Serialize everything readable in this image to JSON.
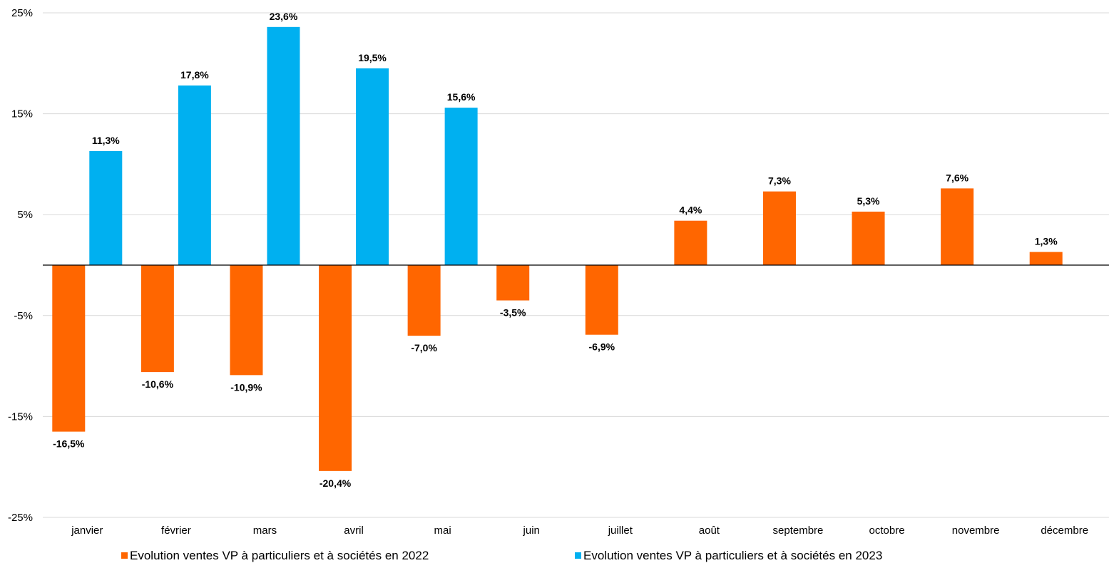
{
  "chart_data": {
    "type": "bar",
    "categories": [
      "janvier",
      "février",
      "mars",
      "avril",
      "mai",
      "juin",
      "juillet",
      "août",
      "septembre",
      "octobre",
      "novembre",
      "décembre"
    ],
    "series": [
      {
        "name": "Evolution ventes VP à particuliers et à sociétés en 2022",
        "color": "#FF6600",
        "values": [
          -16.5,
          -10.6,
          -10.9,
          -20.4,
          -7.0,
          -3.5,
          -6.9,
          4.4,
          7.3,
          5.3,
          7.6,
          1.3
        ],
        "labels": [
          "-16,5%",
          "-10,6%",
          "-10,9%",
          "-20,4%",
          "-7,0%",
          "-3,5%",
          "-6,9%",
          "4,4%",
          "7,3%",
          "5,3%",
          "7,6%",
          "1,3%"
        ]
      },
      {
        "name": "Evolution ventes VP à particuliers et à sociétés en 2023",
        "color": "#00B0F0",
        "values": [
          11.3,
          17.8,
          23.6,
          19.5,
          15.6,
          null,
          null,
          null,
          null,
          null,
          null,
          null
        ],
        "labels": [
          "11,3%",
          "17,8%",
          "23,6%",
          "19,5%",
          "15,6%",
          "",
          "",
          "",
          "",
          "",
          "",
          ""
        ]
      }
    ],
    "ylim": [
      -25,
      25
    ],
    "yticks": [
      25,
      15,
      5,
      -5,
      -15,
      -25
    ],
    "ytick_labels": [
      "25%",
      "15%",
      "5%",
      "-5%",
      "-15%",
      "-25%"
    ],
    "grid": true,
    "legend_position": "bottom"
  }
}
